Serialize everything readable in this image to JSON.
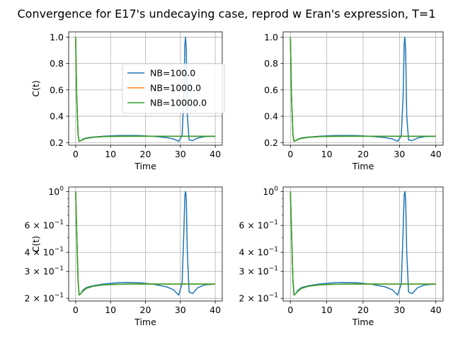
{
  "figure": {
    "title": "Convergence for E17's undecaying case, reprod w Eran's expression, T=1"
  },
  "colors": {
    "NB=100.0": "#1f77b4",
    "NB=1000.0": "#ff7f0e",
    "NB=10000.0": "#2ca02c"
  },
  "chart_data": [
    {
      "type": "line",
      "position": "top-left",
      "xlabel": "Time",
      "ylabel": "C(t)",
      "xlim": [
        -2,
        42
      ],
      "ylim": [
        0.18,
        1.04
      ],
      "yscale": "linear",
      "grid": true,
      "legend": {
        "placement": "center-right"
      },
      "xticks": [
        0,
        10,
        20,
        30,
        40
      ],
      "xtick_labels": [
        "0",
        "10",
        "20",
        "30",
        "40"
      ],
      "yticks": [
        0.2,
        0.4,
        0.6,
        0.8,
        1.0
      ],
      "ytick_labels": [
        "0.2",
        "0.4",
        "0.6",
        "0.8",
        "1.0"
      ],
      "series": [
        {
          "name": "NB=100.0",
          "x": [
            0,
            0.3,
            0.7,
            1,
            1.5,
            2,
            3,
            5,
            8,
            12,
            15,
            18,
            22,
            26,
            28,
            29.5,
            30.5,
            31,
            31.3,
            31.5,
            31.7,
            32,
            32.5,
            33.5,
            35,
            37,
            40
          ],
          "y": [
            1.0,
            0.55,
            0.26,
            0.21,
            0.215,
            0.225,
            0.235,
            0.242,
            0.248,
            0.253,
            0.254,
            0.253,
            0.248,
            0.238,
            0.228,
            0.21,
            0.25,
            0.55,
            0.95,
            1.0,
            0.9,
            0.4,
            0.22,
            0.215,
            0.235,
            0.245,
            0.248
          ]
        },
        {
          "name": "NB=1000.0",
          "x": [
            0,
            0.3,
            0.7,
            1,
            1.5,
            2,
            3,
            5,
            8,
            12,
            16,
            20,
            25,
            30,
            35,
            40
          ],
          "y": [
            1.0,
            0.55,
            0.26,
            0.21,
            0.215,
            0.222,
            0.232,
            0.24,
            0.245,
            0.247,
            0.248,
            0.248,
            0.248,
            0.248,
            0.248,
            0.248
          ]
        },
        {
          "name": "NB=10000.0",
          "x": [
            0,
            0.3,
            0.7,
            1,
            1.5,
            2,
            3,
            5,
            8,
            12,
            16,
            20,
            25,
            30,
            35,
            40
          ],
          "y": [
            1.0,
            0.55,
            0.26,
            0.21,
            0.215,
            0.222,
            0.232,
            0.24,
            0.245,
            0.247,
            0.248,
            0.248,
            0.248,
            0.248,
            0.248,
            0.248
          ]
        }
      ]
    },
    {
      "type": "line",
      "position": "top-right",
      "xlabel": "Time",
      "ylabel": "",
      "xlim": [
        -2,
        42
      ],
      "ylim": [
        0.18,
        1.04
      ],
      "yscale": "linear",
      "grid": true,
      "xticks": [
        0,
        10,
        20,
        30,
        40
      ],
      "xtick_labels": [
        "0",
        "10",
        "20",
        "30",
        "40"
      ],
      "yticks": [
        0.2,
        0.4,
        0.6,
        0.8,
        1.0
      ],
      "ytick_labels": [
        "0.2",
        "0.4",
        "0.6",
        "0.8",
        "1.0"
      ],
      "series": [
        {
          "name": "NB=100.0",
          "x": [
            0,
            0.3,
            0.7,
            1,
            1.5,
            2,
            3,
            5,
            8,
            12,
            15,
            18,
            22,
            26,
            28,
            29.5,
            30.5,
            31,
            31.3,
            31.5,
            31.7,
            32,
            32.5,
            33.5,
            35,
            37,
            40
          ],
          "y": [
            1.0,
            0.55,
            0.26,
            0.21,
            0.215,
            0.225,
            0.235,
            0.242,
            0.248,
            0.253,
            0.254,
            0.253,
            0.248,
            0.238,
            0.228,
            0.21,
            0.25,
            0.55,
            0.95,
            1.0,
            0.9,
            0.4,
            0.22,
            0.215,
            0.235,
            0.245,
            0.248
          ]
        },
        {
          "name": "NB=1000.0",
          "x": [
            0,
            0.3,
            0.7,
            1,
            1.5,
            2,
            3,
            5,
            8,
            12,
            16,
            20,
            25,
            30,
            35,
            40
          ],
          "y": [
            1.0,
            0.55,
            0.26,
            0.21,
            0.215,
            0.222,
            0.232,
            0.24,
            0.245,
            0.247,
            0.248,
            0.248,
            0.248,
            0.248,
            0.248,
            0.248
          ]
        },
        {
          "name": "NB=10000.0",
          "x": [
            0,
            0.3,
            0.7,
            1,
            1.5,
            2,
            3,
            5,
            8,
            12,
            16,
            20,
            25,
            30,
            35,
            40
          ],
          "y": [
            1.0,
            0.55,
            0.26,
            0.21,
            0.215,
            0.222,
            0.232,
            0.24,
            0.245,
            0.247,
            0.248,
            0.248,
            0.248,
            0.248,
            0.248,
            0.248
          ]
        }
      ]
    },
    {
      "type": "line",
      "position": "bottom-left",
      "xlabel": "Time",
      "ylabel": "C(t)",
      "xlim": [
        -2,
        42
      ],
      "ylim": [
        0.192,
        1.07
      ],
      "yscale": "log",
      "grid": true,
      "xticks": [
        0,
        10,
        20,
        30,
        40
      ],
      "xtick_labels": [
        "0",
        "10",
        "20",
        "30",
        "40"
      ],
      "yticks": [
        0.2,
        0.3,
        0.4,
        0.6,
        1.0
      ],
      "ytick_labels": [
        {
          "base": "2 × 10",
          "exp": "−1"
        },
        {
          "base": "3 × 10",
          "exp": "−1"
        },
        {
          "base": "4 × 10",
          "exp": "−1"
        },
        {
          "base": "6 × 10",
          "exp": "−1"
        },
        {
          "base": "10",
          "exp": "0"
        }
      ],
      "series": [
        {
          "name": "NB=100.0",
          "x": [
            0,
            0.3,
            0.7,
            1,
            1.5,
            2,
            3,
            5,
            8,
            12,
            15,
            18,
            22,
            26,
            28,
            29.5,
            30.5,
            31,
            31.3,
            31.5,
            31.7,
            32,
            32.5,
            33.5,
            35,
            37,
            40
          ],
          "y": [
            1.0,
            0.55,
            0.26,
            0.21,
            0.215,
            0.225,
            0.235,
            0.242,
            0.248,
            0.253,
            0.254,
            0.253,
            0.248,
            0.238,
            0.228,
            0.21,
            0.25,
            0.55,
            0.95,
            1.0,
            0.9,
            0.4,
            0.22,
            0.215,
            0.235,
            0.245,
            0.248
          ]
        },
        {
          "name": "NB=1000.0",
          "x": [
            0,
            0.3,
            0.7,
            1,
            1.5,
            2,
            3,
            5,
            8,
            12,
            16,
            20,
            25,
            30,
            35,
            40
          ],
          "y": [
            1.0,
            0.55,
            0.26,
            0.21,
            0.215,
            0.222,
            0.232,
            0.24,
            0.245,
            0.247,
            0.248,
            0.248,
            0.248,
            0.248,
            0.248,
            0.248
          ]
        },
        {
          "name": "NB=10000.0",
          "x": [
            0,
            0.3,
            0.7,
            1,
            1.5,
            2,
            3,
            5,
            8,
            12,
            16,
            20,
            25,
            30,
            35,
            40
          ],
          "y": [
            1.0,
            0.55,
            0.26,
            0.21,
            0.215,
            0.222,
            0.232,
            0.24,
            0.245,
            0.247,
            0.248,
            0.248,
            0.248,
            0.248,
            0.248,
            0.248
          ]
        }
      ]
    },
    {
      "type": "line",
      "position": "bottom-right",
      "xlabel": "Time",
      "ylabel": "",
      "xlim": [
        -2,
        42
      ],
      "ylim": [
        0.192,
        1.07
      ],
      "yscale": "log",
      "grid": true,
      "xticks": [
        0,
        10,
        20,
        30,
        40
      ],
      "xtick_labels": [
        "0",
        "10",
        "20",
        "30",
        "40"
      ],
      "yticks": [
        0.2,
        0.3,
        0.4,
        0.6,
        1.0
      ],
      "ytick_labels": [
        {
          "base": "2 × 10",
          "exp": "−1"
        },
        {
          "base": "3 × 10",
          "exp": "−1"
        },
        {
          "base": "4 × 10",
          "exp": "−1"
        },
        {
          "base": "6 × 10",
          "exp": "−1"
        },
        {
          "base": "10",
          "exp": "0"
        }
      ],
      "series": [
        {
          "name": "NB=100.0",
          "x": [
            0,
            0.3,
            0.7,
            1,
            1.5,
            2,
            3,
            5,
            8,
            12,
            15,
            18,
            22,
            26,
            28,
            29.5,
            30.5,
            31,
            31.3,
            31.5,
            31.7,
            32,
            32.5,
            33.5,
            35,
            37,
            40
          ],
          "y": [
            1.0,
            0.55,
            0.26,
            0.21,
            0.215,
            0.225,
            0.235,
            0.242,
            0.248,
            0.253,
            0.254,
            0.253,
            0.248,
            0.238,
            0.228,
            0.21,
            0.25,
            0.55,
            0.95,
            1.0,
            0.9,
            0.4,
            0.22,
            0.215,
            0.235,
            0.245,
            0.248
          ]
        },
        {
          "name": "NB=1000.0",
          "x": [
            0,
            0.3,
            0.7,
            1,
            1.5,
            2,
            3,
            5,
            8,
            12,
            16,
            20,
            25,
            30,
            35,
            40
          ],
          "y": [
            1.0,
            0.55,
            0.26,
            0.21,
            0.215,
            0.222,
            0.232,
            0.24,
            0.245,
            0.247,
            0.248,
            0.248,
            0.248,
            0.248,
            0.248,
            0.248
          ]
        },
        {
          "name": "NB=10000.0",
          "x": [
            0,
            0.3,
            0.7,
            1,
            1.5,
            2,
            3,
            5,
            8,
            12,
            16,
            20,
            25,
            30,
            35,
            40
          ],
          "y": [
            1.0,
            0.55,
            0.26,
            0.21,
            0.215,
            0.222,
            0.232,
            0.24,
            0.245,
            0.247,
            0.248,
            0.248,
            0.248,
            0.248,
            0.248,
            0.248
          ]
        }
      ]
    }
  ]
}
